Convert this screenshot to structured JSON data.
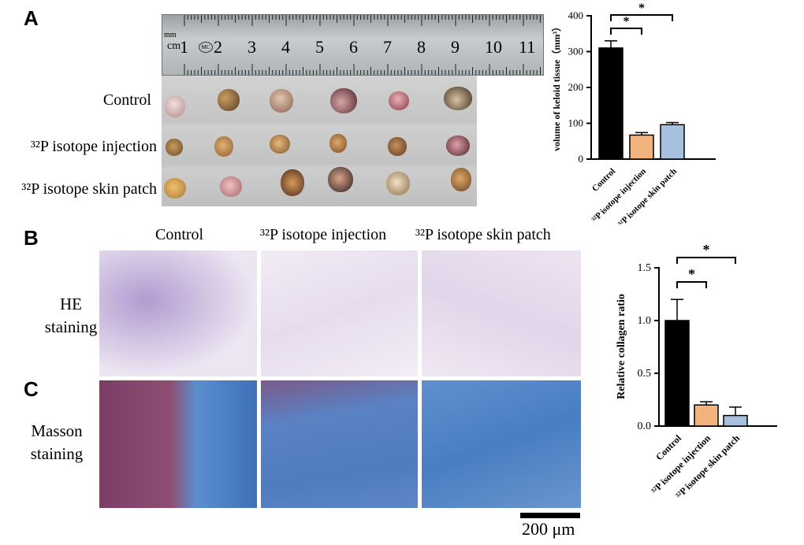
{
  "panels": {
    "A": "A",
    "B": "B",
    "C": "C"
  },
  "ruler": {
    "unit_mm": "mm",
    "unit_cm": "cm",
    "brand": "MC",
    "numbers": [
      "1",
      "2",
      "3",
      "4",
      "5",
      "6",
      "7",
      "8",
      "9",
      "10",
      "11"
    ]
  },
  "photo_rows": [
    "Control",
    "³²P isotope injection",
    "³²P isotope skin patch"
  ],
  "histology": {
    "columns": [
      "Control",
      "³²P isotope injection",
      "³²P isotope skin patch"
    ],
    "he_label": [
      "HE",
      "staining"
    ],
    "masson_label": [
      "Masson",
      "staining"
    ],
    "scale_bar": "200 μm"
  },
  "colors": {
    "control": "#000000",
    "injection": "#f2b37f",
    "patch": "#a8c0df",
    "he_stain": "#c9b6dc",
    "masson_blue": "#5a8fcf",
    "masson_red": "#8a3b5c"
  },
  "chart_data": [
    {
      "type": "bar",
      "categories": [
        "Control",
        "³²P isotope injection",
        "³²P isotope skin patch"
      ],
      "values": [
        310,
        67,
        96
      ],
      "errors": [
        20,
        7,
        6
      ],
      "ylabel": "volume of keloid tissue（mm³）",
      "ylim": [
        0,
        400
      ],
      "yticks": [
        "0",
        "100",
        "200",
        "300",
        "400"
      ],
      "significance": [
        "*",
        "*"
      ]
    },
    {
      "type": "bar",
      "categories": [
        "Control",
        "³²P isotope injection",
        "³²P isotope skin patch"
      ],
      "values": [
        1.0,
        0.2,
        0.1
      ],
      "errors": [
        0.2,
        0.03,
        0.08
      ],
      "ylabel": "Relative collagen ratio",
      "ylim": [
        0,
        1.5
      ],
      "yticks": [
        "0.0",
        "0.5",
        "1.0",
        "1.5"
      ],
      "significance": [
        "*",
        "*"
      ]
    }
  ]
}
